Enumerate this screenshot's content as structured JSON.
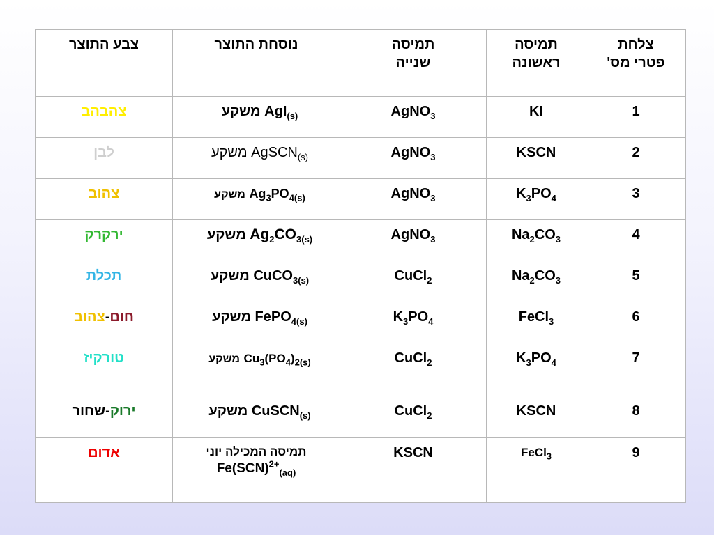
{
  "header": {
    "plate": "צלחת פטרי מס'",
    "first_solution": "תמיסה ראשונה",
    "second_solution": "תמיסה שנייה",
    "product_formula": "נוסחת התוצר",
    "product_color": "צבע התוצר"
  },
  "precipitate_word": "משקע",
  "rows": [
    {
      "num": "1",
      "first": {
        "parts": [
          "KI"
        ]
      },
      "second": {
        "parts": [
          "AgNO",
          "3"
        ]
      },
      "product": {
        "formula": [
          "AgI",
          "(s)"
        ]
      },
      "color": {
        "text": "צהבהב",
        "hex": "#ffee00"
      }
    },
    {
      "num": "2",
      "first": {
        "parts": [
          "KSCN"
        ]
      },
      "second": {
        "parts": [
          "AgNO",
          "3"
        ]
      },
      "product": {
        "formula": [
          "AgSCN",
          "(s)"
        ]
      },
      "color": {
        "text": "לבן",
        "hex": "#cfcfcf"
      }
    },
    {
      "num": "3",
      "first": {
        "parts": [
          "K",
          "3",
          "PO",
          "4"
        ]
      },
      "second": {
        "parts": [
          "AgNO",
          "3"
        ]
      },
      "product": {
        "formula": [
          "Ag",
          "3",
          "PO",
          "4(s)"
        ]
      },
      "color": {
        "text": "צהוב",
        "hex": "#f0c000"
      }
    },
    {
      "num": "4",
      "first": {
        "parts": [
          "Na",
          "2",
          "CO",
          "3"
        ]
      },
      "second": {
        "parts": [
          "AgNO",
          "3"
        ]
      },
      "product": {
        "formula": [
          "Ag",
          "2",
          "CO",
          "3(s)"
        ]
      },
      "color": {
        "text": "ירקרק",
        "hex": "#33b833"
      }
    },
    {
      "num": "5",
      "first": {
        "parts": [
          "Na",
          "2",
          "CO",
          "3"
        ]
      },
      "second": {
        "parts": [
          "CuCl",
          "2"
        ]
      },
      "product": {
        "formula": [
          "CuCO",
          "3(s)"
        ]
      },
      "color": {
        "text": "תכלת",
        "hex": "#33b5e5"
      }
    },
    {
      "num": "6",
      "first": {
        "parts": [
          "FeCl",
          "3"
        ]
      },
      "second": {
        "parts": [
          "K",
          "3",
          "PO",
          "4"
        ]
      },
      "product": {
        "formula": [
          "FePO",
          "4(s)"
        ]
      },
      "color": {
        "text_a": "חום",
        "hex_a": "#8b1a2b",
        "sep": "-",
        "text_b": "צהוב",
        "hex_b": "#f0c000"
      }
    },
    {
      "num": "7",
      "first": {
        "parts": [
          "K",
          "3",
          "PO",
          "4"
        ]
      },
      "second": {
        "parts": [
          "CuCl",
          "2"
        ]
      },
      "product": {
        "formula": [
          "Cu",
          "3",
          "(PO",
          "4",
          ")",
          "2(s)"
        ]
      },
      "color": {
        "text": "טורקיז",
        "hex": "#22e0c8"
      }
    },
    {
      "num": "8",
      "first": {
        "parts": [
          "KSCN"
        ]
      },
      "second": {
        "parts": [
          "CuCl",
          "2"
        ]
      },
      "product": {
        "formula": [
          "CuSCN",
          "(s)"
        ]
      },
      "color": {
        "text_a": "ירוק",
        "hex_a": "#1a7a2a",
        "sep": "-",
        "text_b": "שחור",
        "hex_b": "#000000"
      }
    },
    {
      "num": "9",
      "first": {
        "parts": [
          "FeCl",
          "3"
        ]
      },
      "second": {
        "parts": [
          "KSCN"
        ]
      },
      "product": {
        "line1": "תמיסה המכילה יוני",
        "formula": [
          "Fe(SCN)",
          "2+",
          "(aq)"
        ]
      },
      "color": {
        "text": "אדום",
        "hex": "#ee0000"
      }
    }
  ]
}
